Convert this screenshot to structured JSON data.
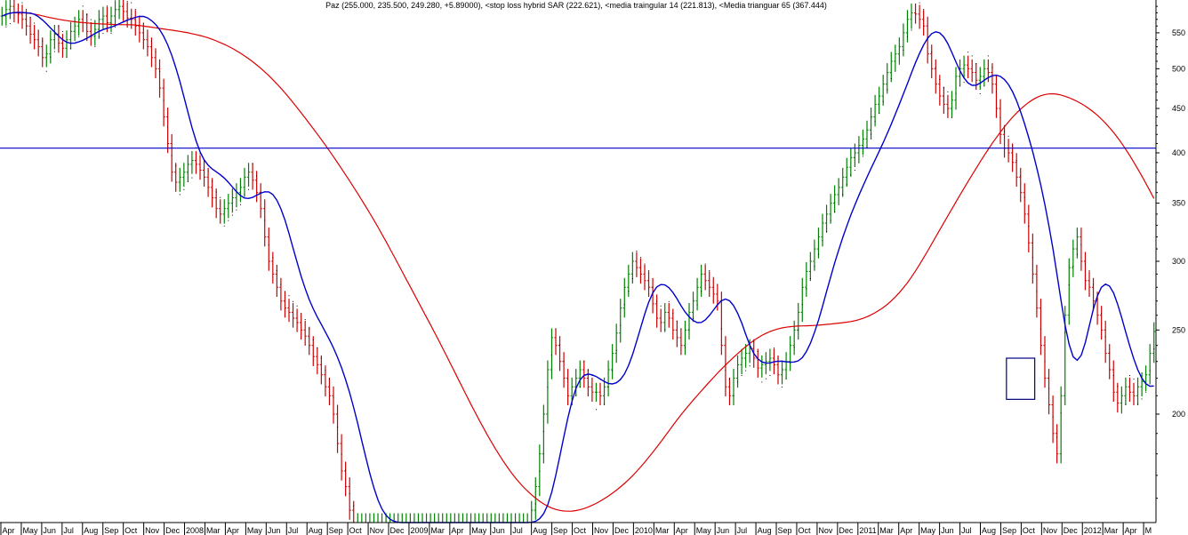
{
  "chart_data": {
    "type": "bar",
    "title": "Paz (255.000, 235.500, 249.280, +5.89000), <stop loss hybrid SAR (222.621), <media traingular 14 (221.813), <Media trianguar 65 (367.444)",
    "xlabel": "",
    "ylabel": "",
    "y_scale": "log",
    "ylim": [
      150,
      600
    ],
    "y_ticks": [
      200,
      250,
      300,
      350,
      400,
      450,
      500,
      550
    ],
    "x_ticks": [
      "Apr",
      "May",
      "Jun",
      "Jul",
      "Aug",
      "Sep",
      "Oct",
      "Nov",
      "Dec",
      "2008",
      "Mar",
      "Apr",
      "May",
      "Jun",
      "Jul",
      "Aug",
      "Sep",
      "Oct",
      "Nov",
      "Dec",
      "2009",
      "Mar",
      "Apr",
      "May",
      "Jun",
      "Jul",
      "Aug",
      "Sep",
      "Oct",
      "Nov",
      "Dec",
      "2010",
      "Mar",
      "Apr",
      "May",
      "Jun",
      "Jul",
      "Aug",
      "Sep",
      "Oct",
      "Nov",
      "Dec",
      "2011",
      "Mar",
      "Apr",
      "May",
      "Jun",
      "Jul",
      "Aug",
      "Sep",
      "Oct",
      "Nov",
      "Dec",
      "2012",
      "Mar",
      "Apr",
      "M"
    ],
    "horizontal_line": 405,
    "annotation_box": {
      "from_week": 249,
      "to_week": 255,
      "low": 208,
      "high": 232
    },
    "grid": false,
    "legend": "none",
    "series": [
      {
        "name": "Paz",
        "kind": "ohlc_bars",
        "color_up": "#008000",
        "color_down": "#cc0000"
      },
      {
        "name": "stop loss hybrid SAR",
        "kind": "dots",
        "color": "#000000"
      },
      {
        "name": "media traingular 14",
        "kind": "line",
        "color": "#0000cc"
      },
      {
        "name": "Media trianguar 65",
        "kind": "line",
        "color": "#dd0000"
      }
    ],
    "closes": [
      575,
      585,
      590,
      580,
      578,
      570,
      560,
      548,
      540,
      530,
      515,
      520,
      540,
      548,
      535,
      528,
      540,
      552,
      560,
      570,
      565,
      552,
      545,
      555,
      570,
      575,
      565,
      575,
      585,
      590,
      582,
      572,
      570,
      560,
      550,
      540,
      530,
      515,
      500,
      475,
      440,
      410,
      380,
      370,
      375,
      380,
      388,
      392,
      388,
      382,
      375,
      365,
      355,
      345,
      340,
      345,
      350,
      355,
      360,
      365,
      375,
      380,
      372,
      360,
      345,
      320,
      300,
      290,
      280,
      270,
      265,
      262,
      258,
      255,
      250,
      246,
      240,
      233,
      228,
      222,
      215,
      210,
      200,
      185,
      172,
      165,
      155,
      150,
      150,
      150,
      150,
      150,
      150,
      150,
      150,
      150,
      150,
      150,
      150,
      150,
      150,
      150,
      150,
      150,
      150,
      150,
      150,
      150,
      150,
      150,
      150,
      150,
      150,
      150,
      150,
      150,
      150,
      150,
      150,
      150,
      150,
      150,
      150,
      150,
      150,
      150,
      150,
      150,
      150,
      150,
      150,
      155,
      165,
      180,
      200,
      225,
      245,
      240,
      230,
      220,
      210,
      215,
      220,
      225,
      220,
      215,
      212,
      212,
      210,
      215,
      225,
      235,
      248,
      265,
      280,
      290,
      300,
      295,
      290,
      285,
      280,
      268,
      258,
      255,
      262,
      258,
      250,
      245,
      240,
      250,
      262,
      270,
      280,
      290,
      285,
      280,
      275,
      270,
      240,
      215,
      210,
      220,
      228,
      232,
      235,
      238,
      232,
      226,
      228,
      230,
      232,
      228,
      222,
      225,
      230,
      240,
      250,
      262,
      280,
      292,
      300,
      310,
      320,
      332,
      340,
      350,
      358,
      365,
      375,
      385,
      395,
      400,
      408,
      415,
      425,
      440,
      455,
      465,
      480,
      495,
      510,
      520,
      530,
      550,
      570,
      580,
      578,
      570,
      560,
      520,
      500,
      480,
      465,
      455,
      450,
      460,
      490,
      500,
      505,
      500,
      495,
      485,
      490,
      500,
      495,
      480,
      450,
      420,
      405,
      400,
      390,
      375,
      360,
      340,
      315,
      290,
      265,
      240,
      220,
      205,
      190,
      180,
      210,
      260,
      295,
      310,
      320,
      300,
      285,
      280,
      270,
      260,
      250,
      235,
      225,
      212,
      206,
      210,
      215,
      212,
      210,
      215,
      218,
      222,
      235,
      249
    ]
  }
}
